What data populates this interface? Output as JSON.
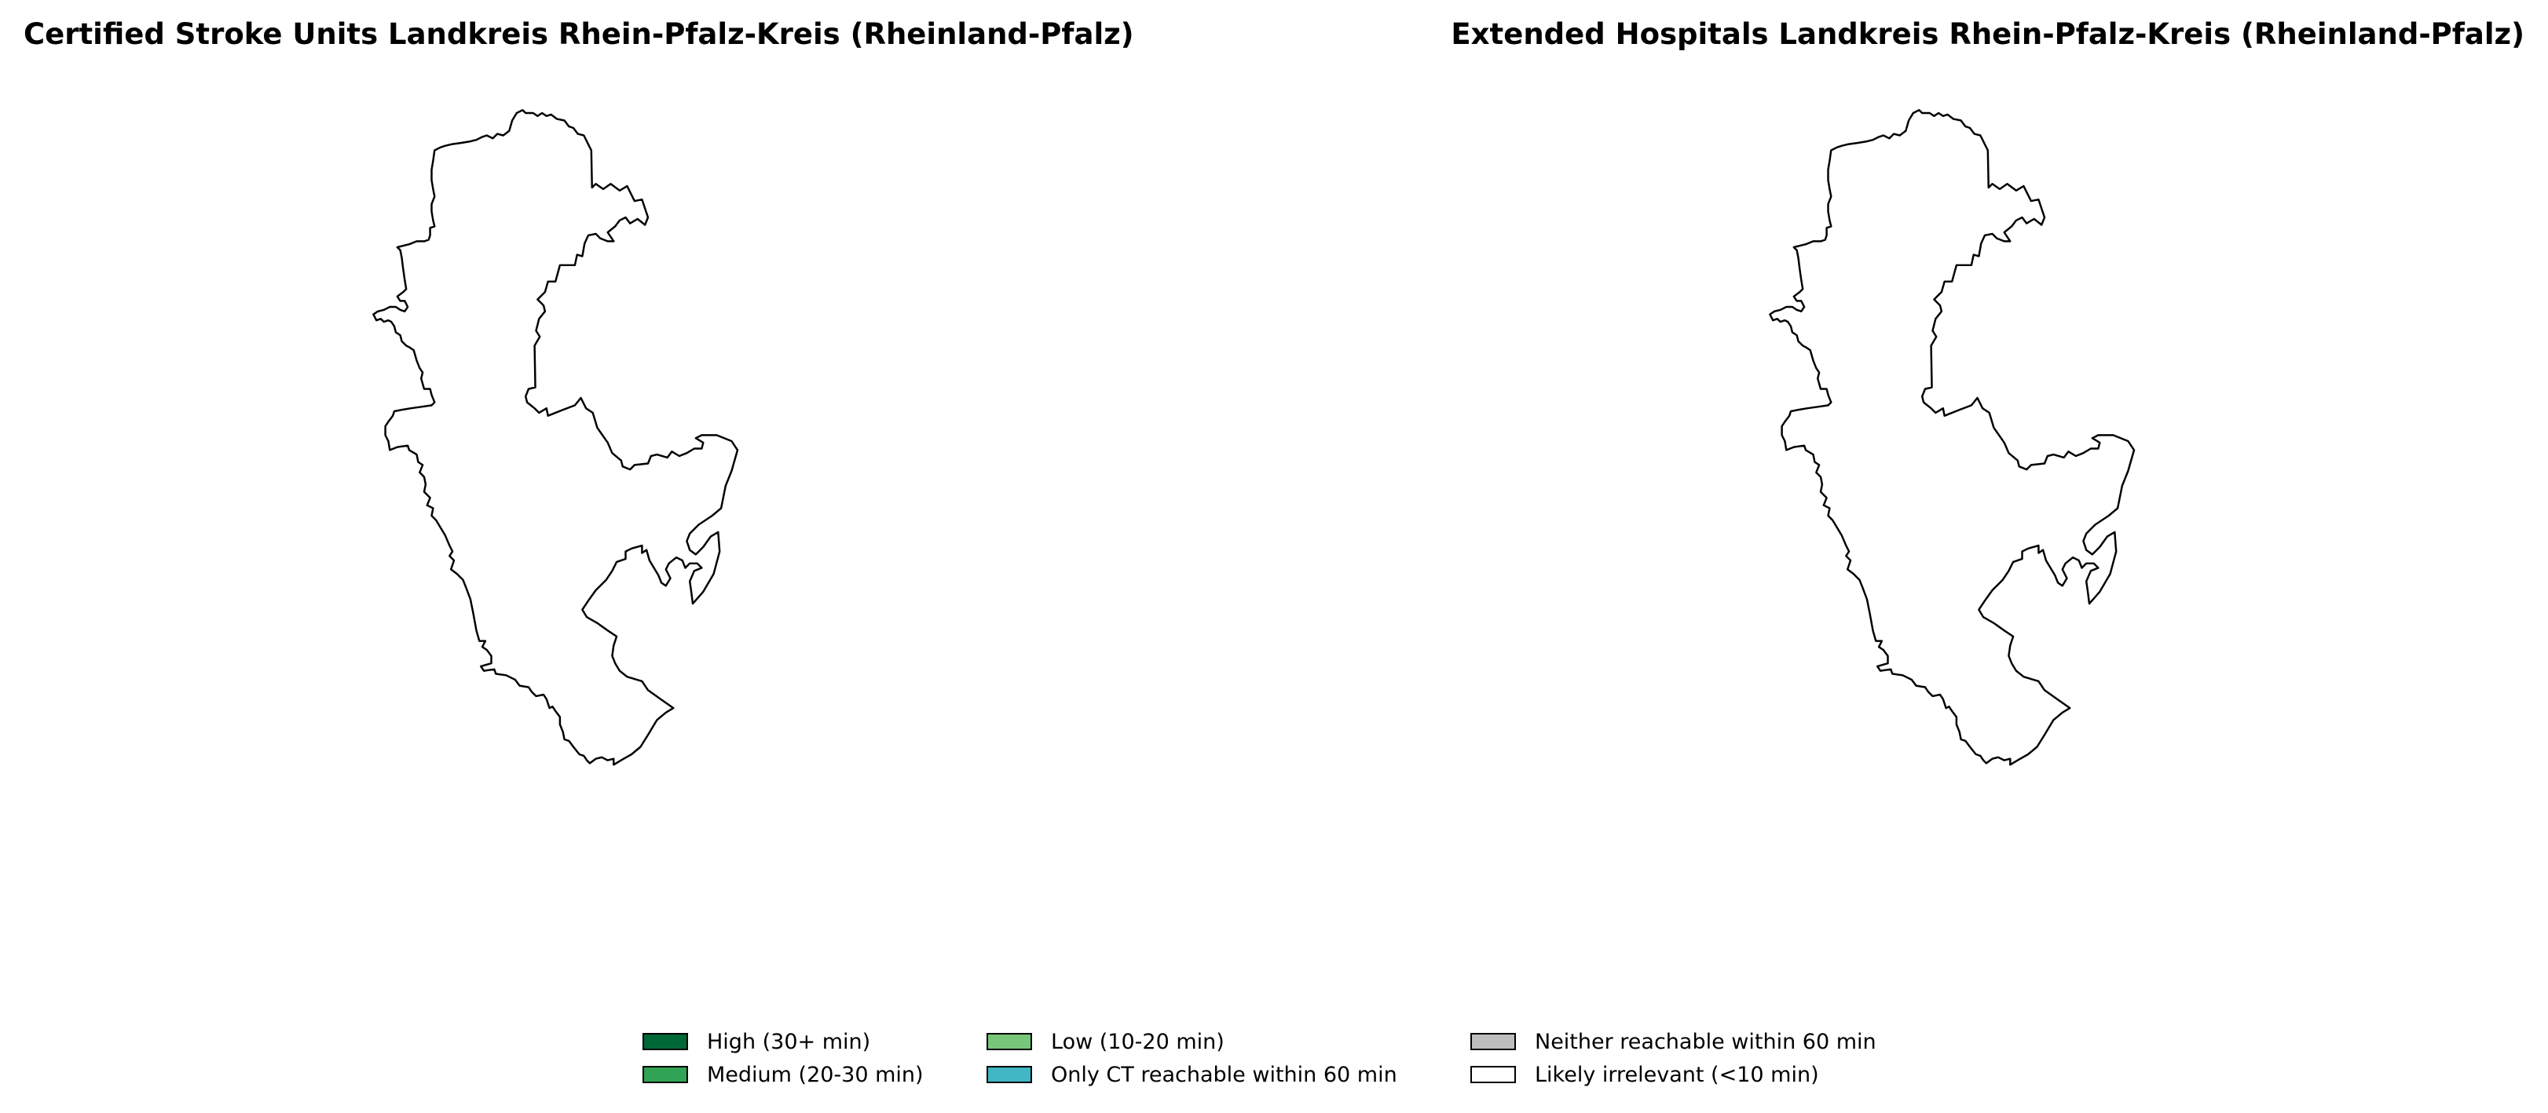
{
  "panels": [
    {
      "title": "Certified Stroke Units Landkreis Rhein-Pfalz-Kreis (Rheinland-Pfalz)",
      "region": "Landkreis Rhein-Pfalz-Kreis (Rheinland-Pfalz)",
      "fill": "#ffffff",
      "outline": "#000000"
    },
    {
      "title": "Extended Hospitals Landkreis Rhein-Pfalz-Kreis (Rheinland-Pfalz)",
      "region": "Landkreis Rhein-Pfalz-Kreis (Rheinland-Pfalz)",
      "fill": "#ffffff",
      "outline": "#000000"
    }
  ],
  "legend": {
    "items": [
      {
        "label": "High (30+ min)",
        "color": "#006837"
      },
      {
        "label": "Medium (20-30 min)",
        "color": "#31a354"
      },
      {
        "label": "Low (10-20 min)",
        "color": "#78c679"
      },
      {
        "label": "Only CT reachable within 60 min",
        "color": "#41b6c4"
      },
      {
        "label": "Neither reachable within 60 min",
        "color": "#bdbdbd"
      },
      {
        "label": "Likely irrelevant (<10 min)",
        "color": "#ffffff"
      }
    ]
  }
}
